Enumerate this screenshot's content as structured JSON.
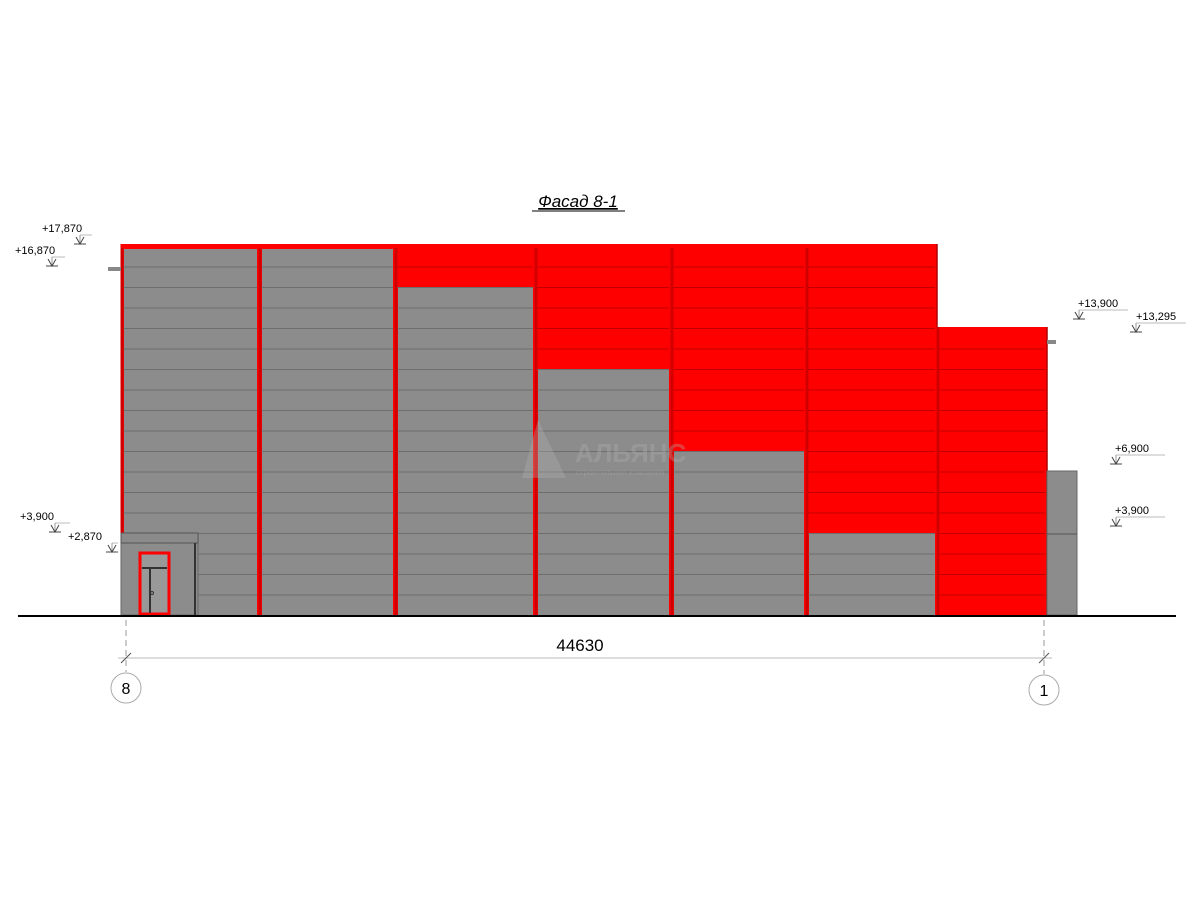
{
  "title": "Фасад 8-1",
  "levels": {
    "left_top": "+17,870",
    "left_roof": "+16,870",
    "left_mid": "+3,900",
    "left_canopy": "+2,870",
    "right_top": "+13,900",
    "right_roof": "+13,295",
    "right_annex": "+6,900",
    "right_mid": "+3,900"
  },
  "dimension": "44630",
  "axes": {
    "left": "8",
    "right": "1"
  },
  "watermark": {
    "name": "АЛЬЯНС",
    "subtitle": "строительная компания"
  },
  "colors": {
    "cladding_red": "#ff0000",
    "cladding_gray": "#8c8c8c",
    "panel_line": "#6e6e6e"
  }
}
